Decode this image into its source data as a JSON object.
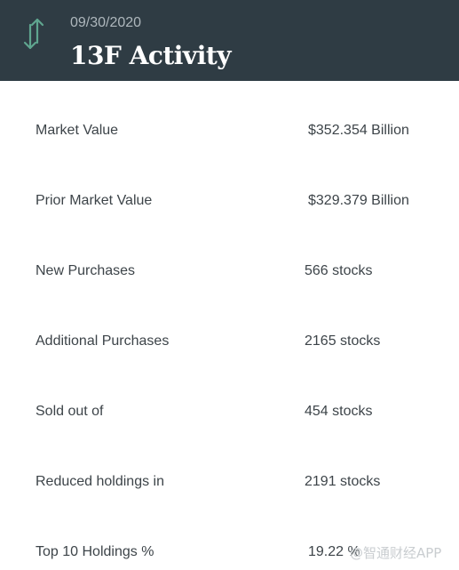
{
  "header": {
    "date": "09/30/2020",
    "title": "13F Activity",
    "icon": "up-down-arrows-icon",
    "accent_color": "#5fa58f"
  },
  "rows": [
    {
      "label": "Market Value",
      "value": "$352.354 Billion"
    },
    {
      "label": "Prior Market Value",
      "value": "$329.379 Billion"
    },
    {
      "label": "New Purchases",
      "value": "566 stocks"
    },
    {
      "label": "Additional Purchases",
      "value": "2165 stocks"
    },
    {
      "label": "Sold out of",
      "value": "454 stocks"
    },
    {
      "label": "Reduced holdings in",
      "value": "2191 stocks"
    },
    {
      "label": "Top 10 Holdings %",
      "value": "19.22 %"
    }
  ],
  "watermark": "@智通财经APP"
}
